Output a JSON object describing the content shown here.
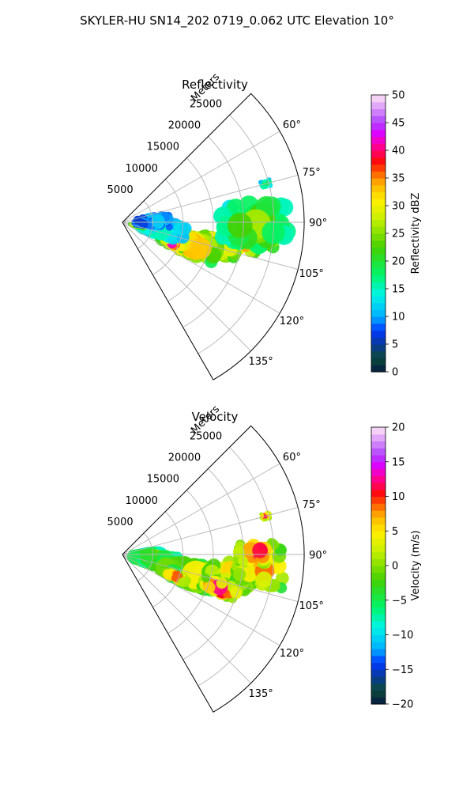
{
  "figure_title": "SKYLER-HU  SN14_202  0719_0.062 UTC Elevation 10°",
  "chart_data": [
    {
      "type": "heatmap",
      "title": "Reflectivity",
      "radial_label": "Meters",
      "radial_ticks": [
        5000,
        10000,
        15000,
        20000,
        25000
      ],
      "radial_ticks_labels": [
        "5000",
        "10000",
        "15000",
        "20000",
        "25000"
      ],
      "range_max": 30000,
      "azimuth_range": [
        45,
        150
      ],
      "azimuth_ticks": [
        60,
        75,
        90,
        105,
        120,
        135
      ],
      "azimuth_labels": [
        "60°",
        "75°",
        "90°",
        "105°",
        "120°",
        "135°"
      ],
      "colorbar": {
        "label": "Reflectivity dBZ",
        "range": [
          0,
          50
        ],
        "ticks": [
          0,
          5,
          10,
          15,
          20,
          25,
          30,
          35,
          40,
          45,
          50
        ],
        "tick_labels": [
          "0",
          "5",
          "10",
          "15",
          "20",
          "25",
          "30",
          "35",
          "40",
          "45",
          "50"
        ]
      },
      "echo_cells": [
        {
          "az": 98,
          "range": 19500,
          "sigma_az": 4,
          "sigma_r": 2200,
          "peak": 40
        },
        {
          "az": 94,
          "range": 22500,
          "sigma_az": 4,
          "sigma_r": 2500,
          "peak": 34
        },
        {
          "az": 104,
          "range": 15500,
          "sigma_az": 3,
          "sigma_r": 2500,
          "peak": 38
        },
        {
          "az": 108,
          "range": 11500,
          "sigma_az": 4,
          "sigma_r": 3000,
          "peak": 37
        },
        {
          "az": 113,
          "range": 9000,
          "sigma_az": 2,
          "sigma_r": 1200,
          "peak": 42
        },
        {
          "az": 100,
          "range": 6500,
          "sigma_az": 5,
          "sigma_r": 2500,
          "peak": 18
        },
        {
          "az": 103,
          "range": 2500,
          "sigma_az": 3,
          "sigma_r": 800,
          "peak": 34
        },
        {
          "az": 88,
          "range": 5000,
          "sigma_az": 5,
          "sigma_r": 1800,
          "peak": 13
        },
        {
          "az": 91,
          "range": 22000,
          "sigma_az": 6,
          "sigma_r": 3500,
          "peak": 25
        },
        {
          "az": 75,
          "range": 24500,
          "sigma_az": 0.8,
          "sigma_r": 500,
          "peak": 22
        }
      ]
    },
    {
      "type": "heatmap",
      "title": "Velocity",
      "radial_label": "Meters",
      "radial_ticks": [
        5000,
        10000,
        15000,
        20000,
        25000
      ],
      "radial_ticks_labels": [
        "5000",
        "10000",
        "15000",
        "20000",
        "25000"
      ],
      "range_max": 30000,
      "azimuth_range": [
        45,
        150
      ],
      "azimuth_ticks": [
        60,
        75,
        90,
        105,
        120,
        135
      ],
      "azimuth_labels": [
        "60°",
        "75°",
        "90°",
        "105°",
        "120°",
        "135°"
      ],
      "colorbar": {
        "label": "Velocity (m/s)",
        "range": [
          -20,
          20
        ],
        "ticks": [
          -20,
          -15,
          -10,
          -5,
          0,
          5,
          10,
          15,
          20
        ],
        "tick_labels": [
          "−20",
          "−15",
          "−10",
          "−5",
          "0",
          "5",
          "10",
          "15",
          "20"
        ]
      },
      "echo_cells": [
        {
          "az": 88,
          "range": 4500,
          "sigma_az": 4,
          "sigma_r": 1500,
          "peak": -3
        },
        {
          "az": 100,
          "range": 5500,
          "sigma_az": 5,
          "sigma_r": 2500,
          "peak": 2
        },
        {
          "az": 106,
          "range": 12000,
          "sigma_az": 4,
          "sigma_r": 3500,
          "peak": 5
        },
        {
          "az": 100,
          "range": 18500,
          "sigma_az": 4,
          "sigma_r": 2500,
          "peak": 9
        },
        {
          "az": 95,
          "range": 23000,
          "sigma_az": 5,
          "sigma_r": 2500,
          "peak": 11
        },
        {
          "az": 89,
          "range": 22000,
          "sigma_az": 3,
          "sigma_r": 2000,
          "peak": 13
        },
        {
          "az": 109,
          "range": 17000,
          "sigma_az": 2,
          "sigma_r": 2000,
          "peak": 14
        },
        {
          "az": 113,
          "range": 9500,
          "sigma_az": 2,
          "sigma_r": 1500,
          "peak": 11
        },
        {
          "az": 75,
          "range": 24500,
          "sigma_az": 0.8,
          "sigma_r": 500,
          "peak": 14
        }
      ]
    }
  ]
}
